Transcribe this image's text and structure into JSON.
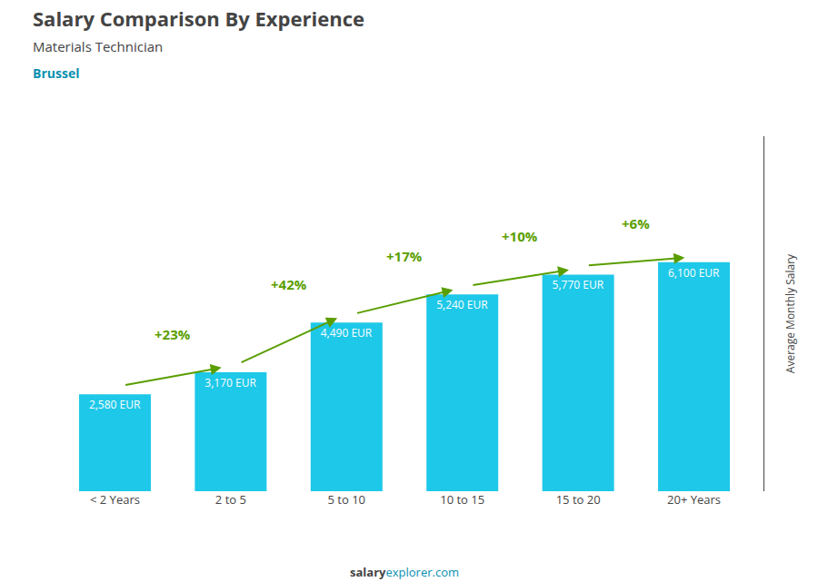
{
  "chart_data": {
    "type": "bar",
    "title": "Salary Comparison By Experience",
    "subtitle": "Materials Technician",
    "city": "Brussel",
    "ylabel": "Average Monthly Salary",
    "footer": [
      "salary",
      "explorer.com"
    ],
    "categories": [
      "< 2 Years",
      "2 to 5",
      "5 to 10",
      "10 to 15",
      "15 to 20",
      "20+ Years"
    ],
    "values": [
      2580,
      3170,
      4490,
      5240,
      5770,
      6100
    ],
    "value_labels": [
      "2,580 EUR",
      "3,170 EUR",
      "4,490 EUR",
      "5,240 EUR",
      "5,770 EUR",
      "6,100 EUR"
    ],
    "data_labels": true,
    "pct_changes": [
      "+23%",
      "+42%",
      "+17%",
      "+10%",
      "+6%"
    ],
    "color": "#1ec8e8",
    "ylim": [
      0,
      9455
    ],
    "yticks": [],
    "tick_labels": "x",
    "grid": false
  }
}
